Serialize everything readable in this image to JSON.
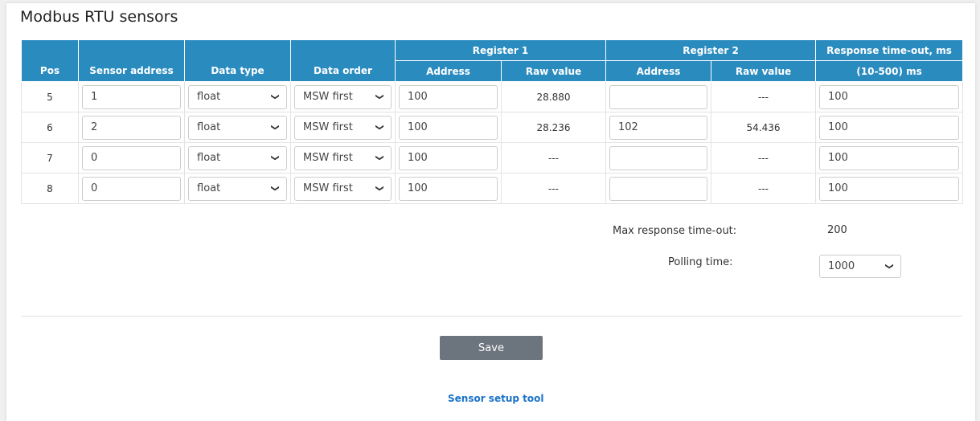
{
  "title": "Modbus RTU sensors",
  "headers": {
    "pos": "Pos",
    "sensor_address": "Sensor address",
    "data_type": "Data type",
    "data_order": "Data order",
    "register1": "Register 1",
    "register2": "Register 2",
    "timeout": "Response time-out, ms",
    "address": "Address",
    "raw_value": "Raw value",
    "timeout_range": "(10-500) ms"
  },
  "rows": [
    {
      "pos": "5",
      "sensor_address": "1",
      "data_type": "float",
      "data_order": "MSW first",
      "reg1_address": "100",
      "reg1_raw": "28.880",
      "reg2_address": "",
      "reg2_raw": "---",
      "timeout": "100"
    },
    {
      "pos": "6",
      "sensor_address": "2",
      "data_type": "float",
      "data_order": "MSW first",
      "reg1_address": "100",
      "reg1_raw": "28.236",
      "reg2_address": "102",
      "reg2_raw": "54.436",
      "timeout": "100"
    },
    {
      "pos": "7",
      "sensor_address": "0",
      "data_type": "float",
      "data_order": "MSW first",
      "reg1_address": "100",
      "reg1_raw": "---",
      "reg2_address": "",
      "reg2_raw": "---",
      "timeout": "100"
    },
    {
      "pos": "8",
      "sensor_address": "0",
      "data_type": "float",
      "data_order": "MSW first",
      "reg1_address": "100",
      "reg1_raw": "---",
      "reg2_address": "",
      "reg2_raw": "---",
      "timeout": "100"
    }
  ],
  "max_timeout_label": "Max response time-out:",
  "max_timeout_value": "200",
  "polling_label": "Polling time:",
  "polling_value": "1000",
  "save_label": "Save",
  "setup_link": "Sensor setup tool",
  "colors": {
    "header": "#2a8bbf",
    "save": "#6c757d",
    "link": "#1a73c8"
  }
}
